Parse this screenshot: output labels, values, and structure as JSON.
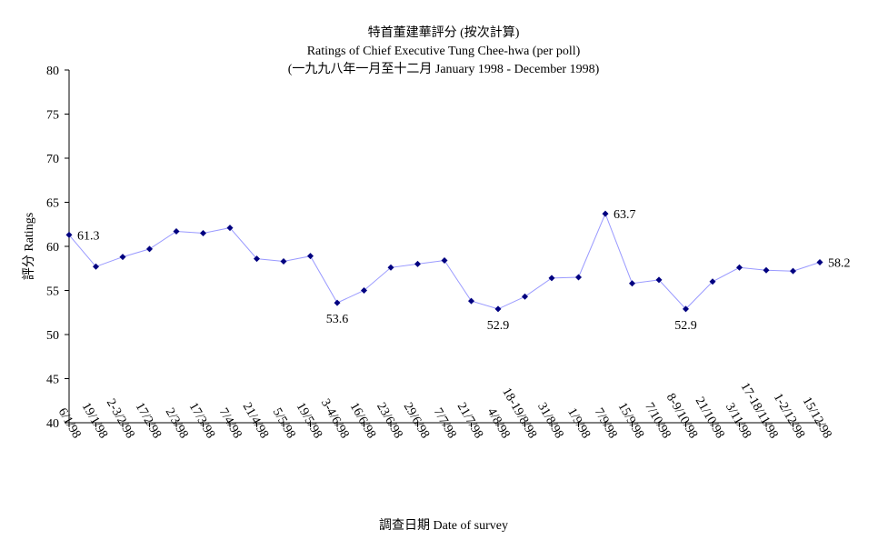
{
  "chart_data": {
    "type": "line",
    "title": "特首董建華評分 (按次計算)",
    "subtitle": "Ratings of Chief Executive Tung Chee-hwa (per poll)",
    "subtitle2": "(一九九八年一月至十二月 January 1998 - December 1998)",
    "xlabel": "調查日期 Date of survey",
    "ylabel": "評分 Ratings",
    "ylim": [
      40,
      80
    ],
    "yticks": [
      40,
      45,
      50,
      55,
      60,
      65,
      70,
      75,
      80
    ],
    "grid": false,
    "legend": "none",
    "categories": [
      "6/1/98",
      "19/1/98",
      "2-3/2/98",
      "17/2/98",
      "2/3/98",
      "17/3/98",
      "7/4/98",
      "21/4/98",
      "5/5/98",
      "19/5/98",
      "3-4/6/98",
      "16/6/98",
      "23/6/98",
      "29/6/98",
      "7/7/98",
      "21/7/98",
      "4/8/98",
      "18-19/8/98",
      "31/8/98",
      "1/9/98",
      "7/9/98",
      "15/9/98",
      "7/10/98",
      "8-9/10/98",
      "21/10/98",
      "3/11/98",
      "17-18/11/98",
      "1-2/12/98",
      "15/12/98"
    ],
    "series": [
      {
        "values": [
          61.3,
          57.7,
          58.8,
          59.7,
          61.7,
          61.5,
          62.1,
          58.6,
          58.3,
          58.9,
          53.6,
          55.0,
          57.6,
          58.0,
          58.4,
          53.8,
          52.9,
          54.3,
          56.4,
          56.5,
          63.7,
          55.8,
          56.2,
          52.9,
          56.0,
          57.6,
          57.3,
          57.2,
          58.2
        ]
      }
    ],
    "data_labels": [
      {
        "index": 0,
        "text": "61.3"
      },
      {
        "index": 10,
        "text": "53.6"
      },
      {
        "index": 16,
        "text": "52.9"
      },
      {
        "index": 20,
        "text": "63.7"
      },
      {
        "index": 23,
        "text": "52.9"
      },
      {
        "index": 28,
        "text": "58.2"
      }
    ],
    "colors": {
      "line": "#9999ff",
      "marker": "#000080",
      "axis": "#000000"
    }
  }
}
